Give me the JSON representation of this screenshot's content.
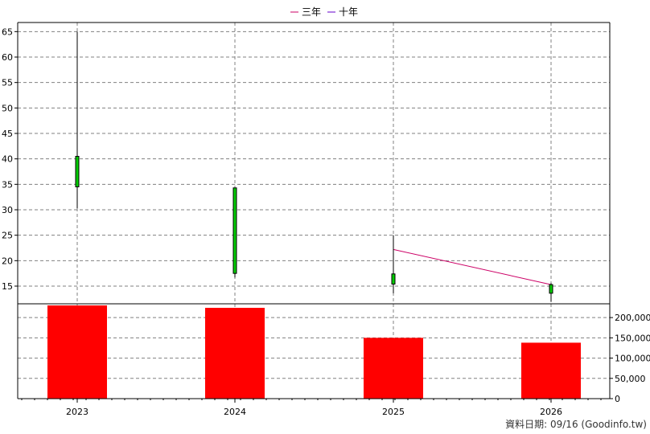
{
  "chart_data": {
    "type": "candlestick+bar",
    "categories": [
      "2023",
      "2024",
      "2025",
      "2026"
    ],
    "price_axis": {
      "ylim": [
        12,
        66
      ],
      "ticks": [
        15,
        20,
        25,
        30,
        35,
        40,
        45,
        50,
        55,
        60,
        65
      ]
    },
    "volume_axis": {
      "ylim": [
        0,
        230000
      ],
      "ticks": [
        0,
        50000,
        100000,
        150000,
        200000
      ],
      "tick_labels": [
        "0",
        "50,000",
        "100,000",
        "150,000",
        "200,000"
      ]
    },
    "candles": [
      {
        "x": "2023",
        "open": 34.5,
        "close": 40.5,
        "high": 65,
        "low": 30.3
      },
      {
        "x": "2024",
        "open": 17.5,
        "close": 34.3,
        "high": 34.3,
        "low": 16.7
      },
      {
        "x": "2025",
        "open": 15.4,
        "close": 17.4,
        "high": 25,
        "low": 13.6
      },
      {
        "x": "2026",
        "open": 13.6,
        "close": 15.3,
        "high": 15.6,
        "low": 11.9
      }
    ],
    "volumes": [
      {
        "x": "2023",
        "value": 230000
      },
      {
        "x": "2024",
        "value": 224000
      },
      {
        "x": "2025",
        "value": 150000
      },
      {
        "x": "2026",
        "value": 138000
      }
    ],
    "series": [
      {
        "name": "三年",
        "color": "#cc0066",
        "points": [
          {
            "x": "2025",
            "y": 22.2
          },
          {
            "x": "2026",
            "y": 15.3
          }
        ]
      },
      {
        "name": "十年",
        "color": "#6600cc",
        "points": []
      }
    ],
    "legend": "top-center",
    "grid": true,
    "colors": {
      "candle_up": "#00cc00",
      "volume": "#ff0000",
      "grid": "#808080"
    }
  },
  "footer": "資料日期: 09/16  (Goodinfo.tw)"
}
